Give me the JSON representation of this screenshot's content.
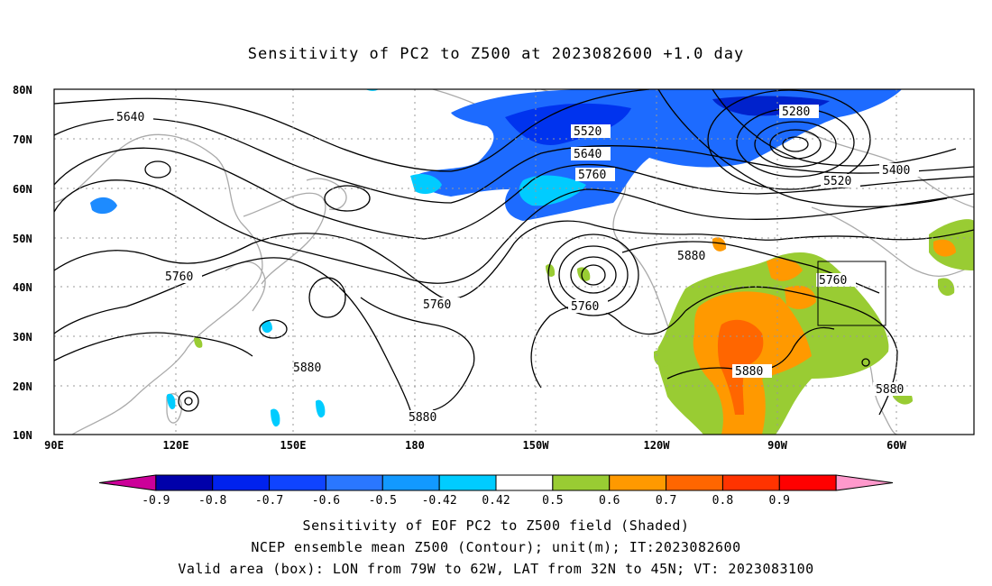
{
  "title": "Sensitivity of PC2 to Z500 at 2023082600 +1.0 day",
  "lat_ticks": [
    "80N",
    "70N",
    "60N",
    "50N",
    "40N",
    "30N",
    "20N",
    "10N"
  ],
  "lon_ticks": [
    "90E",
    "120E",
    "150E",
    "180",
    "150W",
    "120W",
    "90W",
    "60W"
  ],
  "contour_labels": [
    {
      "text": "5640"
    },
    {
      "text": "5520"
    },
    {
      "text": "5640"
    },
    {
      "text": "5760"
    },
    {
      "text": "5280"
    },
    {
      "text": "5400"
    },
    {
      "text": "5520"
    },
    {
      "text": "5760"
    },
    {
      "text": "5760"
    },
    {
      "text": "5760"
    },
    {
      "text": "5880"
    },
    {
      "text": "5760"
    },
    {
      "text": "5880"
    },
    {
      "text": "5880"
    },
    {
      "text": "5880"
    },
    {
      "text": "5880"
    }
  ],
  "colorbar": {
    "colors": [
      "#cc0099",
      "#0000aa",
      "#0022ee",
      "#0f44ff",
      "#2a77ff",
      "#1299ff",
      "#00ccff",
      "#ffffff",
      "#99cc33",
      "#ff9900",
      "#ff6600",
      "#ff3300",
      "#ff0000",
      "#ff99cc"
    ],
    "labels": [
      "-0.9",
      "-0.8",
      "-0.7",
      "-0.6",
      "-0.5",
      "-0.42",
      "0.42",
      "0.5",
      "0.6",
      "0.7",
      "0.8",
      "0.9"
    ]
  },
  "captions": [
    "Sensitivity of EOF PC2 to Z500 field (Shaded)",
    "NCEP ensemble mean Z500 (Contour); unit(m); IT:2023082600",
    "Valid area (box): LON from 79W to 62W, LAT from 32N to 45N; VT: 2023083100"
  ]
}
